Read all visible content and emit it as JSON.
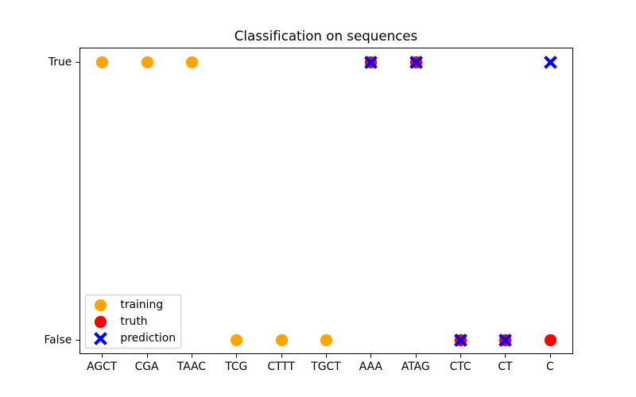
{
  "chart_data": {
    "type": "scatter",
    "title": "Classification on sequences",
    "categories": [
      "AGCT",
      "CGA",
      "TAAC",
      "TCG",
      "CTTT",
      "TGCT",
      "AAA",
      "ATAG",
      "CTC",
      "CT",
      "C"
    ],
    "y_axis": {
      "ticks": [
        {
          "value": 0,
          "label": "False"
        },
        {
          "value": 1,
          "label": "True"
        }
      ],
      "range": [
        -0.05,
        1.05
      ]
    },
    "x_axis": {
      "range": [
        -0.5,
        10.5
      ]
    },
    "series": [
      {
        "name": "training",
        "marker": "circle",
        "color": "#FFA500",
        "points": [
          [
            "AGCT",
            1
          ],
          [
            "CGA",
            1
          ],
          [
            "TAAC",
            1
          ],
          [
            "TCG",
            0
          ],
          [
            "CTTT",
            0
          ],
          [
            "TGCT",
            0
          ]
        ]
      },
      {
        "name": "truth",
        "marker": "circle",
        "color": "#FF0000",
        "points": [
          [
            "AAA",
            1
          ],
          [
            "ATAG",
            1
          ],
          [
            "CTC",
            0
          ],
          [
            "CT",
            0
          ],
          [
            "C",
            0
          ]
        ]
      },
      {
        "name": "prediction",
        "marker": "x",
        "color": "#0000FF",
        "points": [
          [
            "AAA",
            1
          ],
          [
            "ATAG",
            1
          ],
          [
            "CTC",
            0
          ],
          [
            "CT",
            0
          ],
          [
            "C",
            1
          ]
        ]
      }
    ],
    "legend": {
      "position": "lower left",
      "entries": [
        "training",
        "truth",
        "prediction"
      ],
      "border_color": "#CCCCCC",
      "face_color": "#FFFFFF"
    },
    "grid": false,
    "background": "#FFFFFF",
    "spine_color": "#000000",
    "text_color": "#000000"
  }
}
